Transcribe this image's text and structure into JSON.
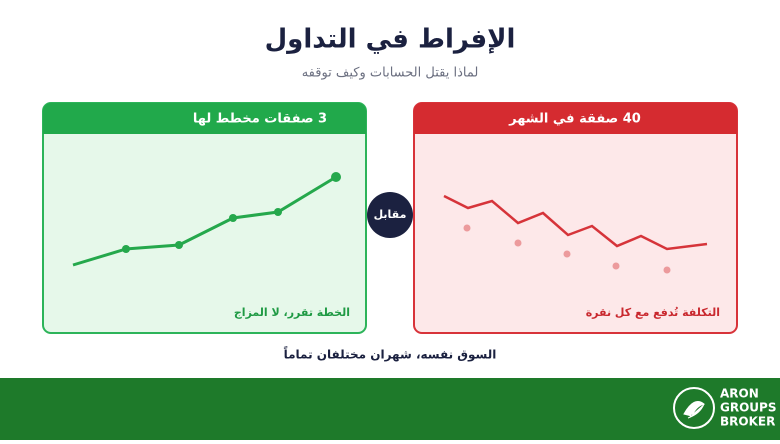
{
  "header": {
    "title": "الإفراط في التداول",
    "subtitle": "لماذا يقتل الحسابات وكيف توقفه"
  },
  "left_panel": {
    "heading": "3 صفقات مخطط لها",
    "caption": "الخطة تقرر، لا المزاج"
  },
  "versus": "مقابل",
  "right_panel": {
    "heading": "40 صفقة في الشهر",
    "caption": "التكلفة تُدفع مع كل نقرة"
  },
  "footer_note": "السوق نفسه، شهران مختلفان تماماً",
  "logo": {
    "line1": "ARON",
    "line2": "GROUPS",
    "line3": "BROKER"
  }
}
